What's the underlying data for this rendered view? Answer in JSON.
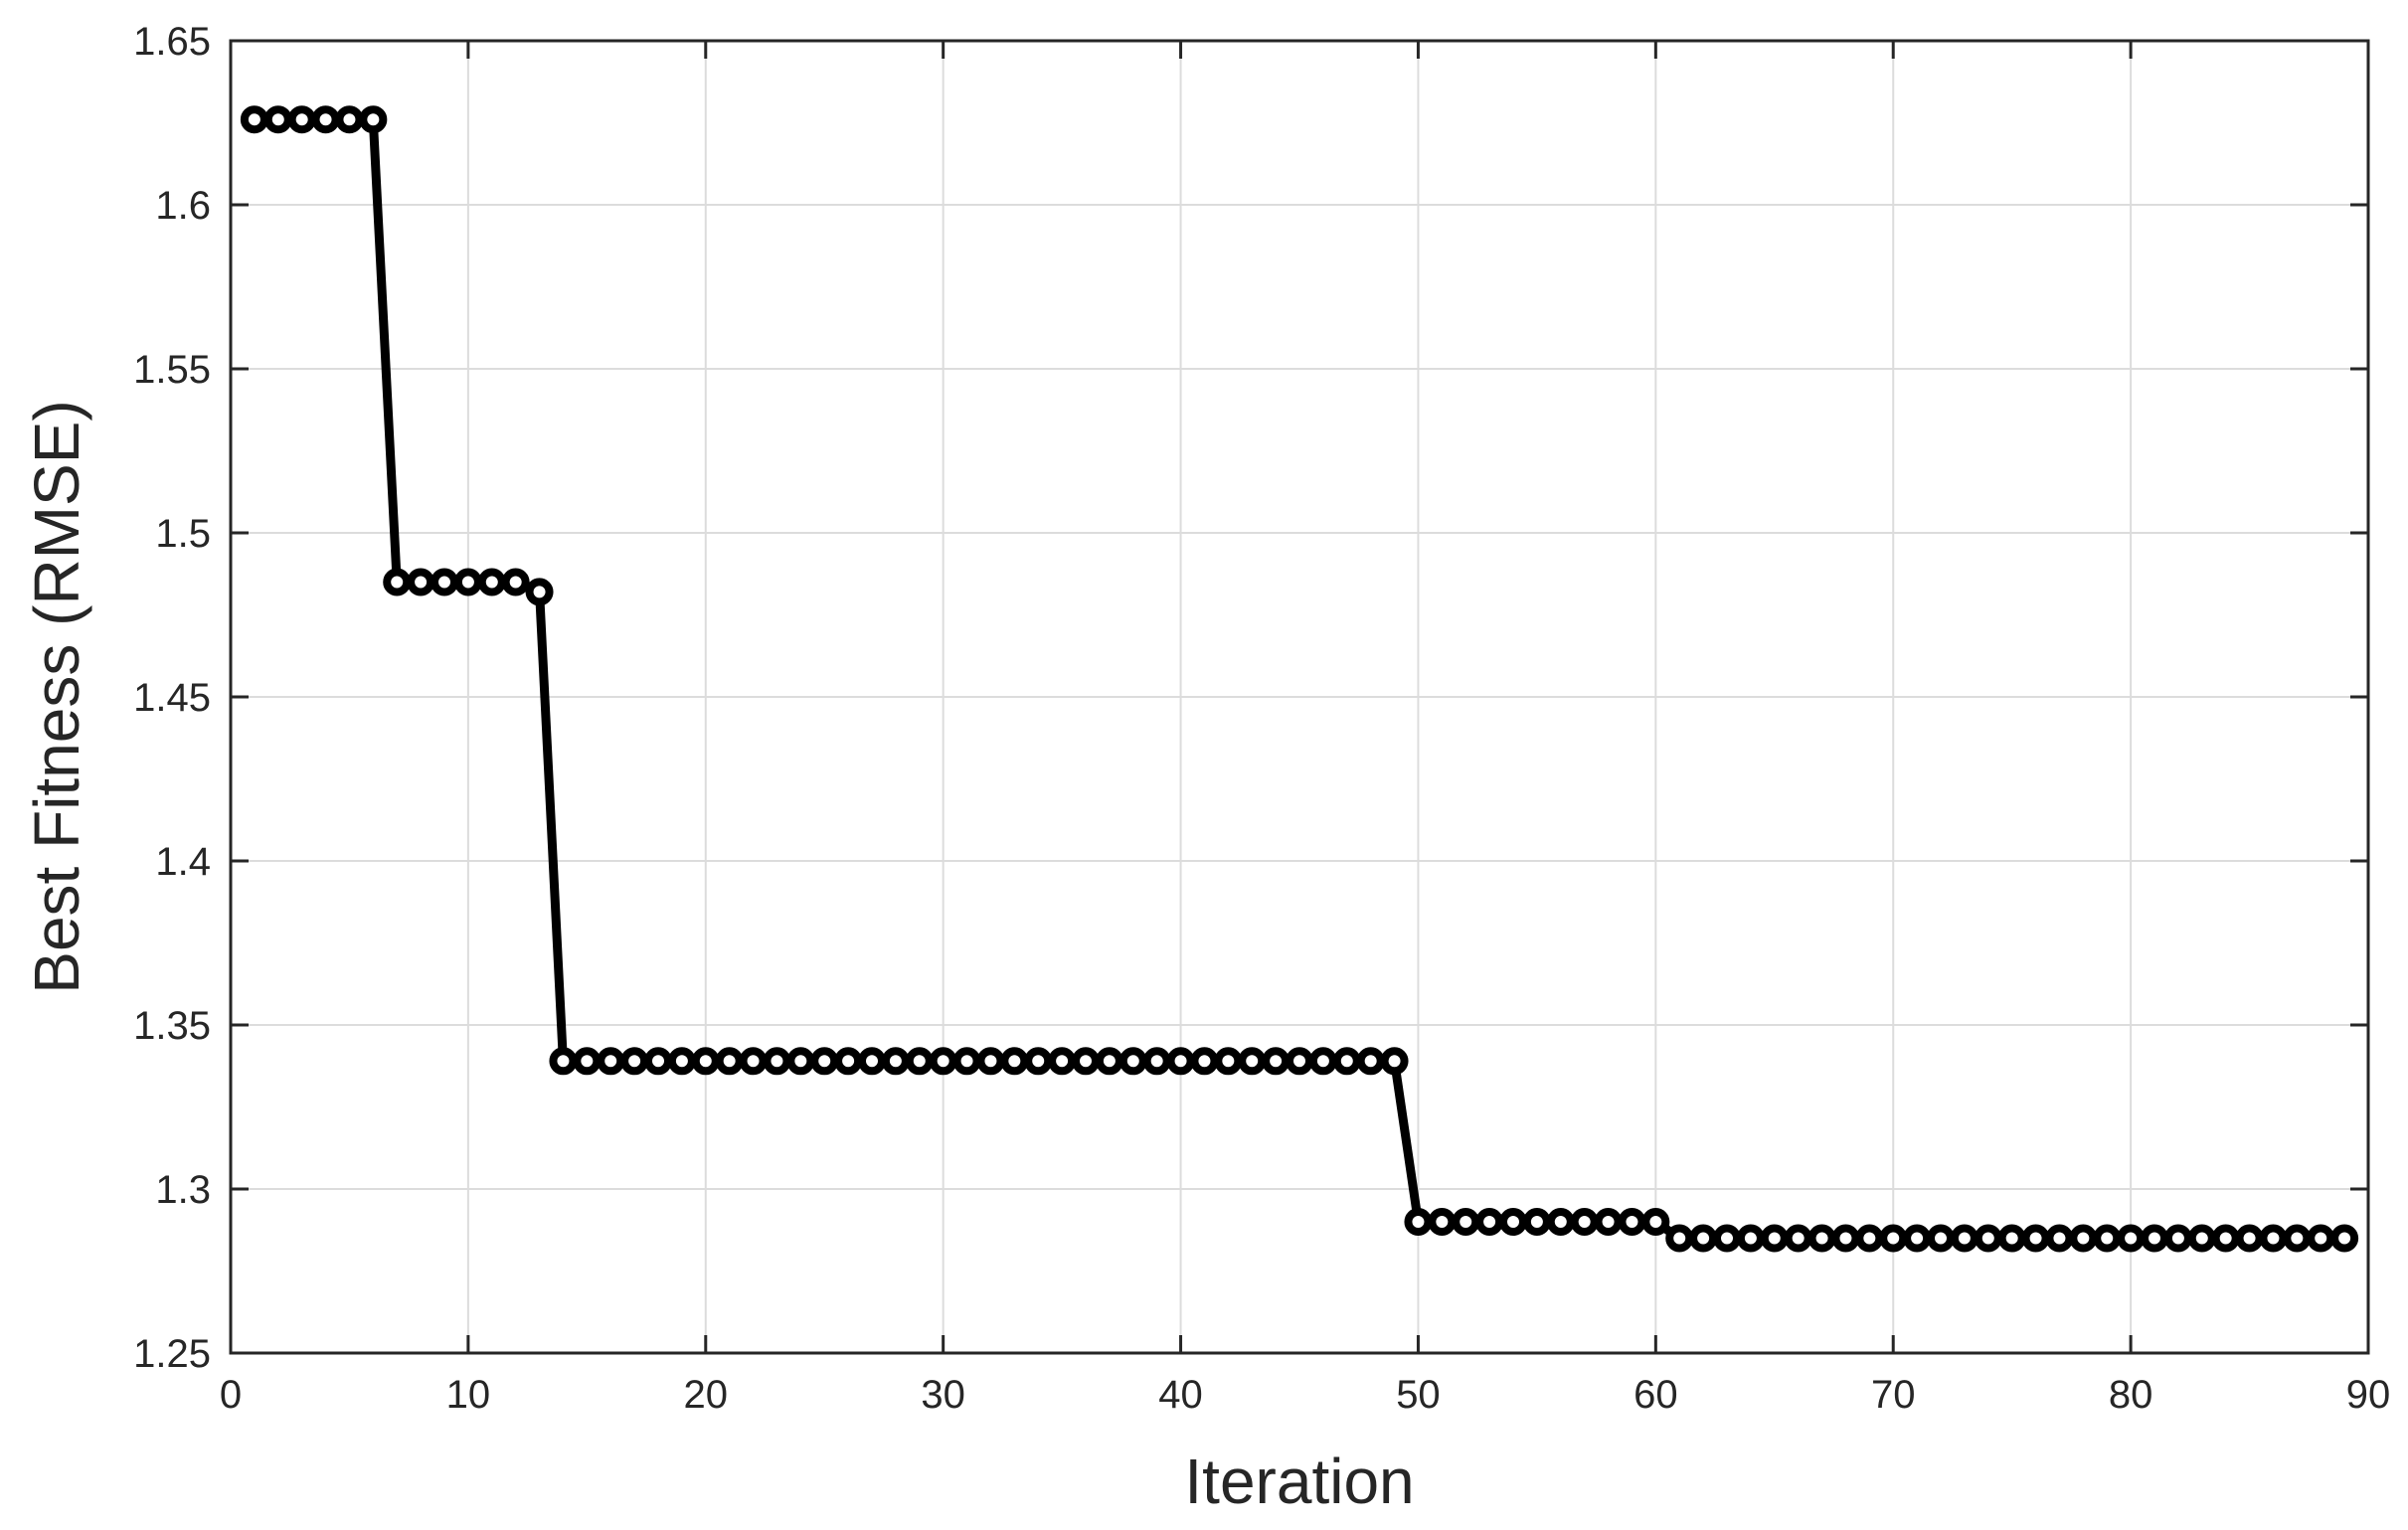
{
  "chart_data": {
    "type": "line",
    "title": "",
    "xlabel": "Iteration",
    "ylabel": "Best Fitness (RMSE)",
    "xlim": [
      0,
      90
    ],
    "ylim": [
      1.25,
      1.65
    ],
    "xticks": [
      0,
      10,
      20,
      30,
      40,
      50,
      60,
      70,
      80,
      90
    ],
    "yticks": [
      1.25,
      1.3,
      1.35,
      1.4,
      1.45,
      1.5,
      1.55,
      1.6,
      1.65
    ],
    "xtick_labels": [
      "0",
      "10",
      "20",
      "30",
      "40",
      "50",
      "60",
      "70",
      "80",
      "90"
    ],
    "ytick_labels": [
      "1.25",
      "1.3",
      "1.35",
      "1.4",
      "1.45",
      "1.5",
      "1.55",
      "1.6",
      "1.65"
    ],
    "grid": true,
    "legend": "none",
    "series": [
      {
        "color": "#000000",
        "marker": "circle",
        "x": [
          1,
          2,
          3,
          4,
          5,
          6,
          7,
          8,
          9,
          10,
          11,
          12,
          13,
          14,
          15,
          16,
          17,
          18,
          19,
          20,
          21,
          22,
          23,
          24,
          25,
          26,
          27,
          28,
          29,
          30,
          31,
          32,
          33,
          34,
          35,
          36,
          37,
          38,
          39,
          40,
          41,
          42,
          43,
          44,
          45,
          46,
          47,
          48,
          49,
          50,
          51,
          52,
          53,
          54,
          55,
          56,
          57,
          58,
          59,
          60,
          61,
          62,
          63,
          64,
          65,
          66,
          67,
          68,
          69,
          70,
          71,
          72,
          73,
          74,
          75,
          76,
          77,
          78,
          79,
          80,
          81,
          82,
          83,
          84,
          85,
          86,
          87,
          88,
          89
        ],
        "y": [
          1.626,
          1.626,
          1.626,
          1.626,
          1.626,
          1.626,
          1.485,
          1.485,
          1.485,
          1.485,
          1.485,
          1.485,
          1.482,
          1.339,
          1.339,
          1.339,
          1.339,
          1.339,
          1.339,
          1.339,
          1.339,
          1.339,
          1.339,
          1.339,
          1.339,
          1.339,
          1.339,
          1.339,
          1.339,
          1.339,
          1.339,
          1.339,
          1.339,
          1.339,
          1.339,
          1.339,
          1.339,
          1.339,
          1.339,
          1.339,
          1.339,
          1.339,
          1.339,
          1.339,
          1.339,
          1.339,
          1.339,
          1.339,
          1.339,
          1.29,
          1.29,
          1.29,
          1.29,
          1.29,
          1.29,
          1.29,
          1.29,
          1.29,
          1.29,
          1.29,
          1.285,
          1.285,
          1.285,
          1.285,
          1.285,
          1.285,
          1.285,
          1.285,
          1.285,
          1.285,
          1.285,
          1.285,
          1.285,
          1.285,
          1.285,
          1.285,
          1.285,
          1.285,
          1.285,
          1.285,
          1.285,
          1.285,
          1.285,
          1.285,
          1.285,
          1.285,
          1.285,
          1.285,
          1.285
        ]
      }
    ]
  }
}
